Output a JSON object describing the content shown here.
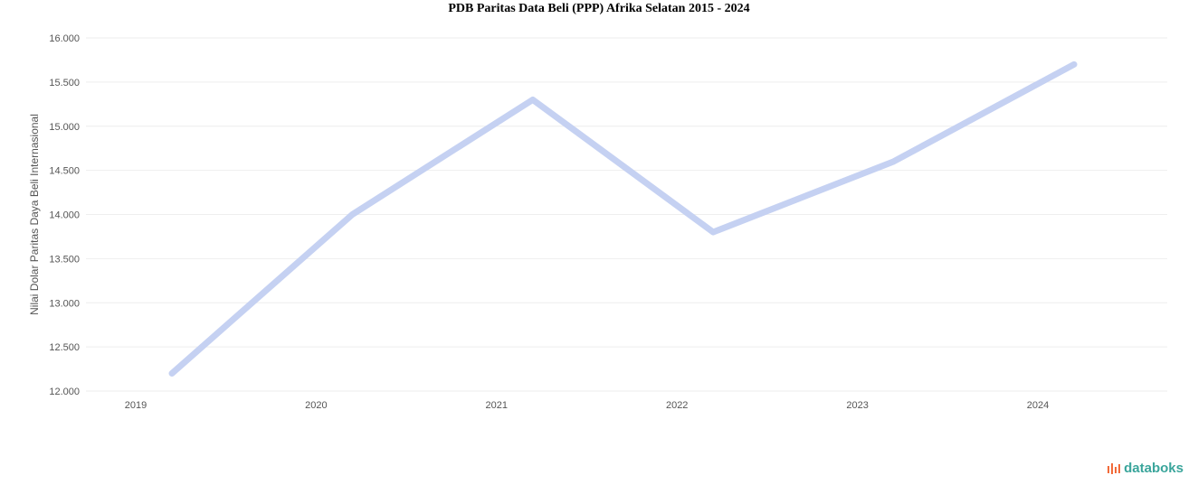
{
  "chart_data": {
    "type": "line",
    "title": "PDB Paritas Data Beli (PPP) Afrika Selatan 2015 - 2024",
    "ylabel": "Nilai Dolar Paritas Daya Beli Internasional",
    "categories": [
      "2019",
      "2020",
      "2021",
      "2022",
      "2023",
      "2024"
    ],
    "series": [
      {
        "values": [
          12200,
          14000,
          15300,
          13800,
          14600,
          15700
        ],
        "color": "#c5d1f2"
      }
    ],
    "yticks": [
      12000,
      12500,
      13000,
      13500,
      14000,
      14500,
      15000,
      15500,
      16000
    ],
    "ylim": [
      12000,
      16000
    ],
    "grid": true,
    "legend": "none"
  },
  "branding": {
    "logo_text": "databoks",
    "logo_color": "#3aa59b",
    "logo_accent": "#f26b3a"
  }
}
